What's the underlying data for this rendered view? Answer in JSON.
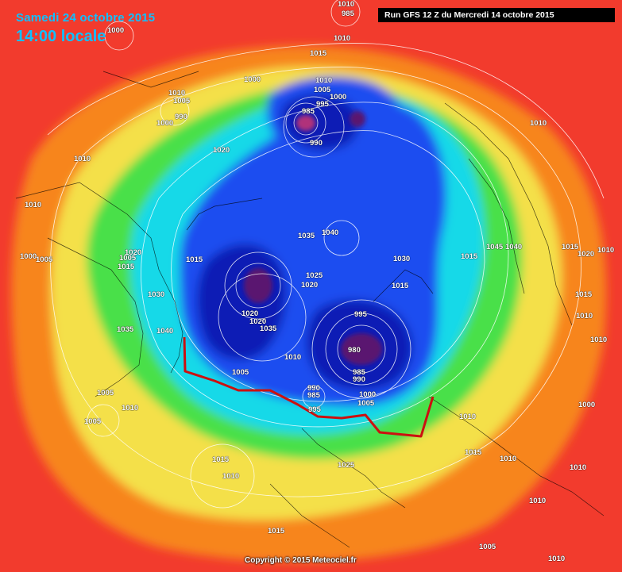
{
  "map": {
    "date_text": "Samedi 24 octobre 2015",
    "time_text": "14:00 locale",
    "run_text": "Run GFS 12 Z du Mercredi 14 octobre 2015",
    "copyright_text": "Copyright © 2015 Meteociel.fr",
    "colors": {
      "background": "#f23b2d",
      "orange": "#f7851f",
      "yellow": "#f4e04a",
      "green": "#49e04a",
      "cyan": "#17d9e8",
      "blue": "#1a4df0",
      "dark_blue": "#0a1fb5",
      "purple": "#5a1470",
      "front_line": "#cc1010"
    },
    "isobar_labels": [
      "1010",
      "1000",
      "985",
      "1010",
      "1015",
      "1000",
      "1010",
      "1005",
      "995",
      "1000",
      "985",
      "990",
      "1010",
      "1005",
      "990",
      "1000",
      "1020",
      "1010",
      "1010",
      "1035",
      "1040",
      "1030",
      "1045",
      "1040",
      "1015",
      "1020",
      "1010",
      "1000",
      "1005",
      "1005",
      "1020",
      "1015",
      "1015",
      "1030",
      "1025",
      "1020",
      "1015",
      "1035",
      "1040",
      "995",
      "1020",
      "1020",
      "1035",
      "1010",
      "980",
      "985",
      "990",
      "1010",
      "1005",
      "1005",
      "990",
      "985",
      "995",
      "1000",
      "1005",
      "1010",
      "1005",
      "1010",
      "1000",
      "1015",
      "1025",
      "1015",
      "1010",
      "1010",
      "1010",
      "1015",
      "1010",
      "1015",
      "1010",
      "1005",
      "1010",
      "1010",
      "1015"
    ]
  }
}
